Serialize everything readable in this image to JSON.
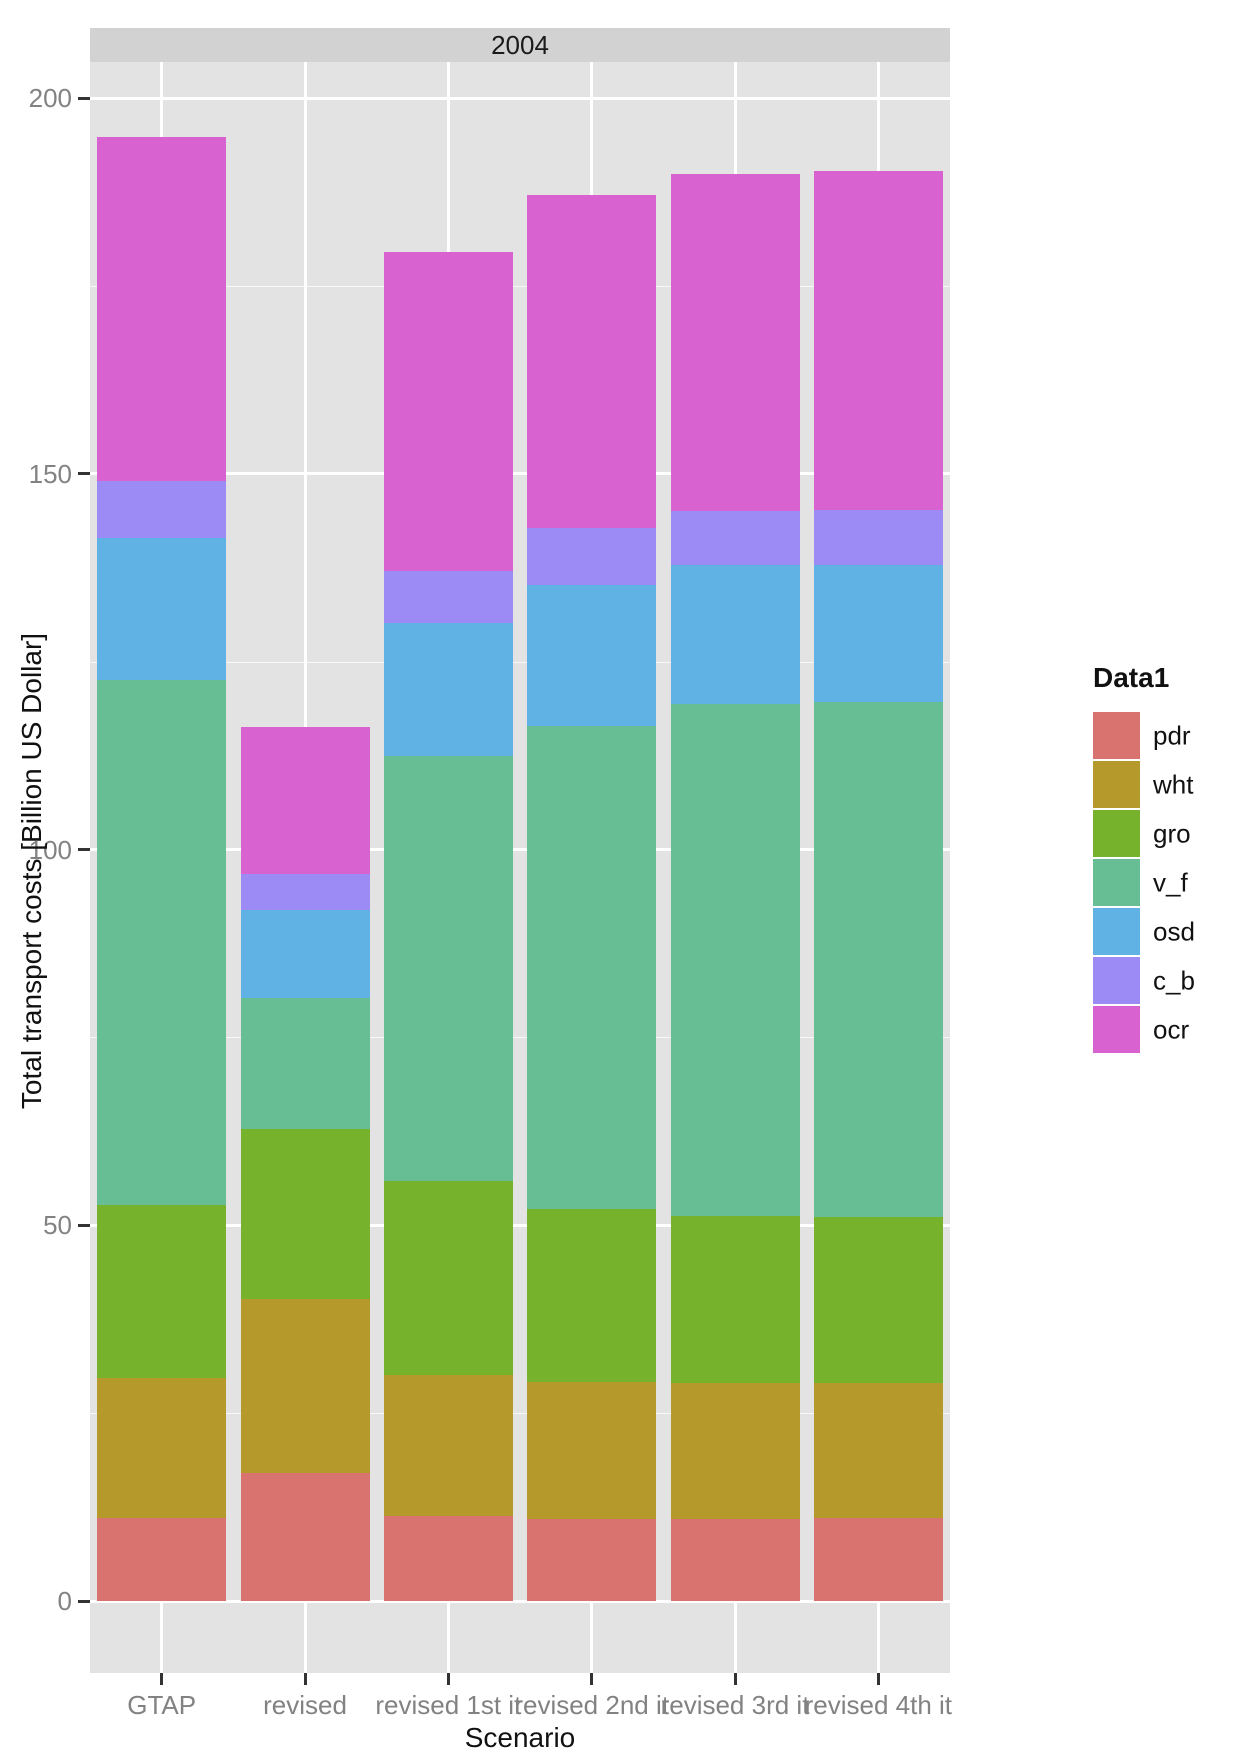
{
  "window": {
    "facet_label": "2004"
  },
  "chart_data": {
    "type": "bar",
    "stacked": true,
    "facet_label": "2004",
    "xlabel": "Scenario",
    "ylabel": "Total transport costs [Billion US Dollar]",
    "ylim": [
      0,
      200
    ],
    "yticks": [
      0,
      50,
      100,
      150,
      200
    ],
    "yminor": [
      25,
      75,
      125,
      175
    ],
    "grid": true,
    "legend_position": "right",
    "legend_title": "Data1",
    "categories": [
      "GTAP",
      "revised",
      "revised 1st it",
      "revised 2nd it",
      "revised 3rd it",
      "revised 4th it"
    ],
    "series": [
      {
        "name": "pdr",
        "color": "#d97370",
        "values": [
          11.0,
          17.1,
          11.3,
          10.9,
          10.9,
          11.0
        ]
      },
      {
        "name": "wht",
        "color": "#b6992b",
        "values": [
          18.7,
          23.1,
          18.8,
          18.2,
          18.1,
          18.0
        ]
      },
      {
        "name": "gro",
        "color": "#76b22b",
        "values": [
          23.0,
          22.6,
          25.8,
          23.0,
          22.2,
          22.1
        ]
      },
      {
        "name": "v_f",
        "color": "#67bd94",
        "values": [
          69.9,
          17.4,
          56.5,
          64.4,
          68.1,
          68.5
        ]
      },
      {
        "name": "osd",
        "color": "#61b2e4",
        "values": [
          18.9,
          11.8,
          17.8,
          18.7,
          18.5,
          18.3
        ]
      },
      {
        "name": "c_b",
        "color": "#9c8bf5",
        "values": [
          7.5,
          4.8,
          6.9,
          7.6,
          7.3,
          7.3
        ]
      },
      {
        "name": "ocr",
        "color": "#d862d0",
        "values": [
          45.8,
          19.5,
          42.4,
          44.3,
          44.8,
          45.1
        ]
      }
    ],
    "bar_totals": [
      194.8,
      116.3,
      179.5,
      187.1,
      189.9,
      190.3
    ]
  },
  "colors": {
    "panel_background": "#e3e3e3",
    "strip_background": "#d2d2d2",
    "gridline": "#ffffff",
    "tick_label": "#828282",
    "axis_title": "#111111"
  }
}
